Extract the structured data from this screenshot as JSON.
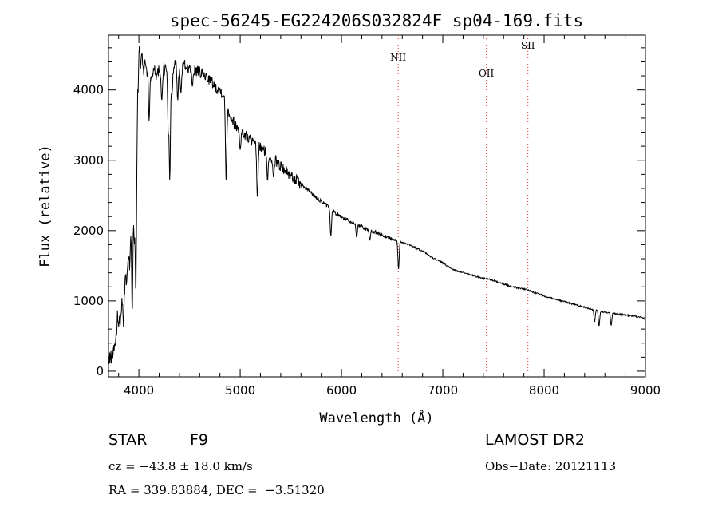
{
  "chart_data": {
    "type": "line",
    "title": "spec-56245-EG224206S032824F_sp04-169.fits",
    "xlabel": "Wavelength (Å)",
    "ylabel": "Flux (relative)",
    "xlim": [
      3700,
      9000
    ],
    "ylim": [
      -80,
      4780
    ],
    "x_ticks": [
      4000,
      5000,
      6000,
      7000,
      8000,
      9000
    ],
    "y_ticks": [
      0,
      1000,
      2000,
      3000,
      4000
    ],
    "grid": false,
    "series": [
      {
        "points": [
          [
            3700,
            100
          ],
          [
            3720,
            200
          ],
          [
            3740,
            230
          ],
          [
            3760,
            380
          ],
          [
            3780,
            500
          ],
          [
            3790,
            850
          ],
          [
            3800,
            650
          ],
          [
            3815,
            750
          ],
          [
            3835,
            1000
          ],
          [
            3850,
            700
          ],
          [
            3865,
            1400
          ],
          [
            3880,
            1250
          ],
          [
            3895,
            1600
          ],
          [
            3910,
            1500
          ],
          [
            3925,
            2350
          ],
          [
            3935,
            2850
          ],
          [
            3945,
            2400
          ],
          [
            3955,
            1700
          ],
          [
            3965,
            2700
          ],
          [
            3975,
            3350
          ],
          [
            3985,
            3850
          ],
          [
            3995,
            4150
          ],
          [
            4005,
            4700
          ],
          [
            4015,
            4300
          ],
          [
            4030,
            4550
          ],
          [
            4045,
            4200
          ],
          [
            4060,
            4450
          ],
          [
            4080,
            4250
          ],
          [
            4100,
            4400
          ],
          [
            4125,
            4150
          ],
          [
            4150,
            4350
          ],
          [
            4175,
            4200
          ],
          [
            4200,
            4300
          ],
          [
            4230,
            4250
          ],
          [
            4260,
            4300
          ],
          [
            4290,
            4350
          ],
          [
            4310,
            4100
          ],
          [
            4330,
            4250
          ],
          [
            4360,
            4400
          ],
          [
            4400,
            4300
          ],
          [
            4450,
            4350
          ],
          [
            4500,
            4300
          ],
          [
            4550,
            4280
          ],
          [
            4600,
            4250
          ],
          [
            4650,
            4200
          ],
          [
            4700,
            4150
          ],
          [
            4750,
            4050
          ],
          [
            4800,
            4000
          ],
          [
            4830,
            3950
          ],
          [
            4870,
            3750
          ],
          [
            4900,
            3650
          ],
          [
            4950,
            3500
          ],
          [
            5000,
            3420
          ],
          [
            5050,
            3350
          ],
          [
            5100,
            3300
          ],
          [
            5150,
            3200
          ],
          [
            5200,
            3180
          ],
          [
            5250,
            3120
          ],
          [
            5300,
            3050
          ],
          [
            5350,
            3000
          ],
          [
            5400,
            2920
          ],
          [
            5450,
            2850
          ],
          [
            5500,
            2780
          ],
          [
            5550,
            2720
          ],
          [
            5600,
            2650
          ],
          [
            5650,
            2600
          ],
          [
            5700,
            2540
          ],
          [
            5750,
            2470
          ],
          [
            5800,
            2420
          ],
          [
            5850,
            2360
          ],
          [
            5900,
            2300
          ],
          [
            5950,
            2240
          ],
          [
            6000,
            2200
          ],
          [
            6050,
            2160
          ],
          [
            6100,
            2120
          ],
          [
            6150,
            2090
          ],
          [
            6200,
            2060
          ],
          [
            6250,
            2020
          ],
          [
            6300,
            1990
          ],
          [
            6350,
            1970
          ],
          [
            6400,
            1940
          ],
          [
            6450,
            1910
          ],
          [
            6500,
            1880
          ],
          [
            6550,
            1860
          ],
          [
            6600,
            1830
          ],
          [
            6650,
            1810
          ],
          [
            6700,
            1780
          ],
          [
            6750,
            1740
          ],
          [
            6800,
            1710
          ],
          [
            6850,
            1660
          ],
          [
            6900,
            1610
          ],
          [
            6950,
            1580
          ],
          [
            7000,
            1540
          ],
          [
            7050,
            1490
          ],
          [
            7100,
            1450
          ],
          [
            7150,
            1420
          ],
          [
            7200,
            1400
          ],
          [
            7250,
            1380
          ],
          [
            7300,
            1360
          ],
          [
            7350,
            1340
          ],
          [
            7400,
            1320
          ],
          [
            7450,
            1310
          ],
          [
            7500,
            1290
          ],
          [
            7550,
            1260
          ],
          [
            7600,
            1240
          ],
          [
            7650,
            1220
          ],
          [
            7700,
            1200
          ],
          [
            7750,
            1180
          ],
          [
            7800,
            1170
          ],
          [
            7850,
            1150
          ],
          [
            7900,
            1120
          ],
          [
            7950,
            1100
          ],
          [
            8000,
            1070
          ],
          [
            8050,
            1050
          ],
          [
            8100,
            1030
          ],
          [
            8150,
            1010
          ],
          [
            8200,
            990
          ],
          [
            8250,
            970
          ],
          [
            8300,
            950
          ],
          [
            8350,
            930
          ],
          [
            8400,
            910
          ],
          [
            8450,
            890
          ],
          [
            8500,
            870
          ],
          [
            8550,
            850
          ],
          [
            8600,
            840
          ],
          [
            8650,
            830
          ],
          [
            8700,
            820
          ],
          [
            8750,
            810
          ],
          [
            8800,
            800
          ],
          [
            8850,
            790
          ],
          [
            8900,
            780
          ],
          [
            8950,
            770
          ],
          [
            8990,
            750
          ],
          [
            9000,
            700
          ]
        ],
        "dips": [
          [
            3970,
            1100
          ],
          [
            3934,
            800
          ],
          [
            4101,
            3550
          ],
          [
            4226,
            3850
          ],
          [
            4290,
            3400
          ],
          [
            4305,
            2700
          ],
          [
            4325,
            3900
          ],
          [
            4383,
            3850
          ],
          [
            4415,
            3950
          ],
          [
            4528,
            4050
          ],
          [
            4861,
            2700
          ],
          [
            5000,
            3150
          ],
          [
            5170,
            2450
          ],
          [
            5270,
            2700
          ],
          [
            5330,
            2750
          ],
          [
            5895,
            1920
          ],
          [
            6150,
            1900
          ],
          [
            6280,
            1860
          ],
          [
            6563,
            1450
          ],
          [
            8498,
            700
          ],
          [
            8542,
            640
          ],
          [
            8662,
            650
          ]
        ]
      }
    ]
  },
  "emission_lines": [
    {
      "label": "NII",
      "wavelength": 6560
    },
    {
      "label": "OII",
      "wavelength": 7430
    },
    {
      "label": "SII",
      "wavelength": 7840
    }
  ],
  "footer": {
    "object_class": "STAR",
    "subclass": "F9",
    "survey": "LAMOST DR2",
    "redshift_line": "cz = −43.8 ± 18.0 km/s",
    "obs_date": "Obs−Date: 20121113",
    "coords": "RA = 339.83884, DEC =  −3.51320"
  }
}
